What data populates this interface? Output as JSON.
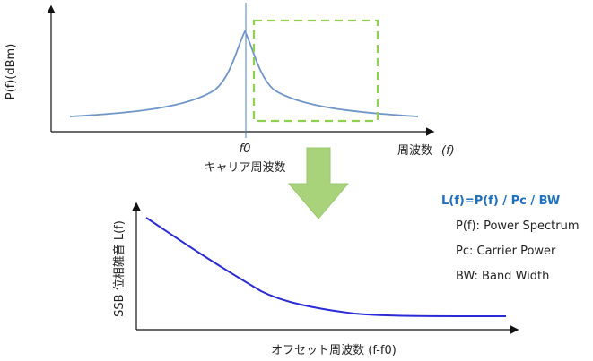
{
  "top": {
    "y_label": "P(f)(dBm)",
    "x_label": "周波数",
    "x_label_var": "(f)",
    "f0_label": "f0",
    "carrier_label": "キャリア周波数"
  },
  "bottom": {
    "y_label": "SSB 位相雑音 L(f)",
    "x_label": "オフセット周波数 (f-f0)"
  },
  "formula": {
    "title": "L(f)=P(f) / Pc / BW",
    "lines": [
      "P(f): Power Spectrum",
      "Pc: Carrier Power",
      "BW: Band Width"
    ]
  },
  "colors": {
    "spectrum": "#6f96c8",
    "carrier_line": "#4a7fc0",
    "dashed_box": "#8fd14f",
    "arrow": "#a9d37a",
    "phase_noise": "#2b2bd8",
    "formula": "#1f6fc0"
  }
}
